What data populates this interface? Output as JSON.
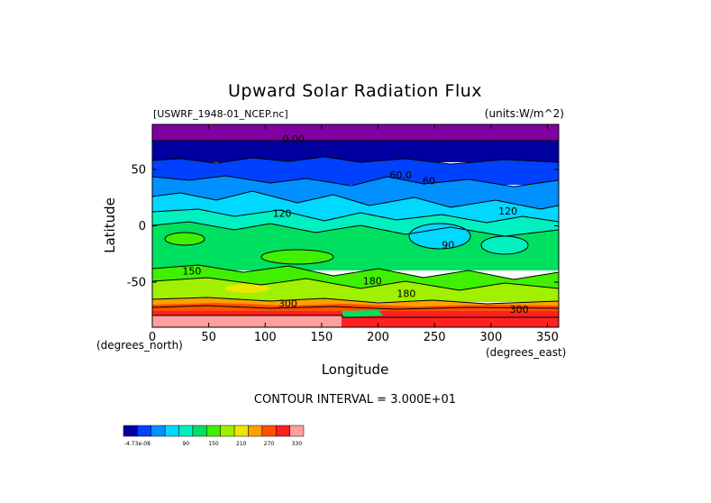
{
  "chart_data": {
    "type": "heatmap",
    "title": "Upward Solar Radiation Flux",
    "source_label": "[USWRF_1948-01_NCEP.nc]",
    "units_label": "(units:W/m^2)",
    "xlabel": "Longitude",
    "x_unit_label": "(degrees_east)",
    "ylabel": "Latitude",
    "y_unit_label": "(degrees_north)",
    "xlim": [
      0,
      360
    ],
    "ylim": [
      -90,
      90
    ],
    "x_ticks": [
      "0",
      "50",
      "100",
      "150",
      "200",
      "250",
      "300",
      "350"
    ],
    "y_ticks": [
      "50",
      "0",
      "-50"
    ],
    "x_tick_values": [
      0,
      50,
      100,
      150,
      200,
      250,
      300,
      350
    ],
    "y_tick_values": [
      50,
      0,
      -50
    ],
    "contour_interval_text": "CONTOUR INTERVAL = 3.000E+01",
    "colorbar": {
      "tick_labels": [
        "-4.73e-08",
        "90",
        "150",
        "210",
        "270",
        "330"
      ],
      "colors": [
        "#0000a0",
        "#0040ff",
        "#0090ff",
        "#00d8ff",
        "#00f0c0",
        "#00e060",
        "#40f000",
        "#a0f000",
        "#e8e800",
        "#ffa000",
        "#ff5000",
        "#ff2020",
        "#ffa0a0"
      ]
    },
    "contour_labels": [
      {
        "text": "0.00",
        "lon": 125,
        "lat": 74
      },
      {
        "text": "60.0",
        "lon": 220,
        "lat": 42
      },
      {
        "text": "60",
        "lon": 245,
        "lat": 37
      },
      {
        "text": "120",
        "lon": 115,
        "lat": 8
      },
      {
        "text": "120",
        "lon": 315,
        "lat": 10
      },
      {
        "text": "90",
        "lon": 262,
        "lat": -20
      },
      {
        "text": "150",
        "lon": 35,
        "lat": -43
      },
      {
        "text": "180",
        "lon": 195,
        "lat": -52
      },
      {
        "text": "180",
        "lon": 225,
        "lat": -63
      },
      {
        "text": "300",
        "lon": 120,
        "lat": -72
      },
      {
        "text": "300",
        "lon": 325,
        "lat": -77
      }
    ],
    "latitude_bands": [
      {
        "lat_max": 90,
        "lat_min": 76,
        "value": "below 0"
      },
      {
        "lat_max": 76,
        "lat_min": 67,
        "value": "0-30"
      },
      {
        "lat_max": 67,
        "lat_min": 52,
        "value": "30-60"
      },
      {
        "lat_max": 52,
        "lat_min": 28,
        "value": "60-90"
      },
      {
        "lat_max": 28,
        "lat_min": 10,
        "value": "90-120"
      },
      {
        "lat_max": 10,
        "lat_min": -40,
        "value": "120-180"
      },
      {
        "lat_max": -40,
        "lat_min": -62,
        "value": "150-210"
      },
      {
        "lat_max": -62,
        "lat_min": -70,
        "value": "240-300"
      },
      {
        "lat_max": -70,
        "lat_min": -80,
        "value": "300-330"
      },
      {
        "lat_max": -80,
        "lat_min": -90,
        "value": "above 330"
      }
    ]
  }
}
